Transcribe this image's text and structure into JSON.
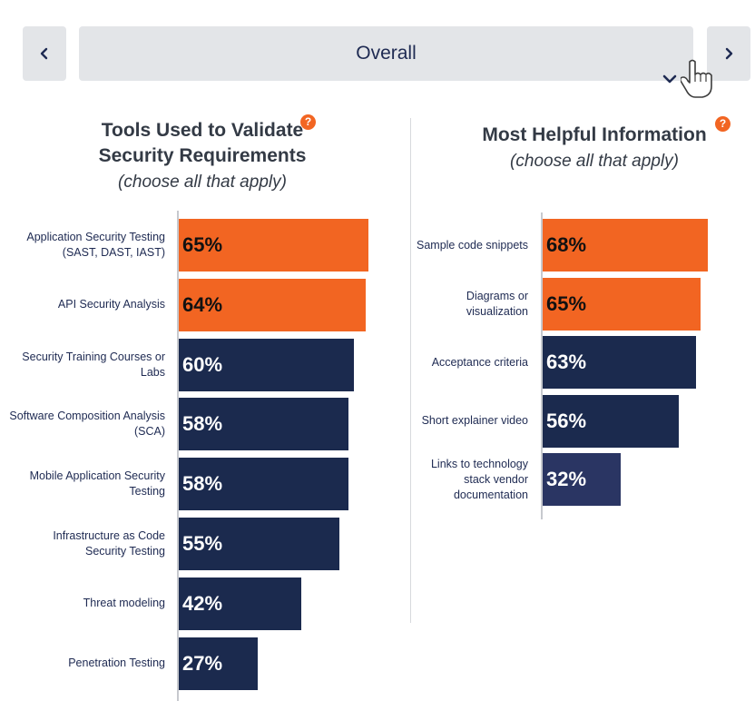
{
  "nav": {
    "prev_icon": "chevron-left-icon",
    "next_icon": "chevron-right-icon",
    "dropdown_value": "Overall",
    "dropdown_icon": "chevron-down-icon",
    "cursor_icon": "hand-pointer-icon"
  },
  "colors": {
    "highlight": "#f26522",
    "default": "#1b2a4e",
    "last_right": "#2a3563"
  },
  "chart_data": [
    {
      "type": "bar",
      "orientation": "horizontal",
      "title": "Tools Used to Validate Security Requirements",
      "title_line1": "Tools Used to Validate",
      "title_line2": "Security Requirements",
      "subtitle": "(choose all that apply)",
      "help_label": "?",
      "categories": [
        "Application Security Testing (SAST, DAST, IAST)",
        "API Security Analysis",
        "Security Training Courses or Labs",
        "Software Composition Analysis (SCA)",
        "Mobile Application Security Testing",
        "Infrastructure as Code Security Testing",
        "Threat modeling",
        "Penetration Testing"
      ],
      "values": [
        65,
        64,
        60,
        58,
        58,
        55,
        42,
        27
      ],
      "value_labels": [
        "65%",
        "64%",
        "60%",
        "58%",
        "58%",
        "55%",
        "42%",
        "27%"
      ],
      "highlighted": [
        true,
        true,
        false,
        false,
        false,
        false,
        false,
        false
      ],
      "unit": "%"
    },
    {
      "type": "bar",
      "orientation": "horizontal",
      "title": "Most Helpful Information",
      "subtitle": "(choose all that apply)",
      "help_label": "?",
      "categories": [
        "Sample code snippets",
        "Diagrams or visualization",
        "Acceptance criteria",
        "Short explainer video",
        "Links to technology stack vendor documentation"
      ],
      "values": [
        68,
        65,
        63,
        56,
        32
      ],
      "value_labels": [
        "68%",
        "65%",
        "63%",
        "56%",
        "32%"
      ],
      "highlighted": [
        true,
        true,
        false,
        false,
        false
      ],
      "unit": "%"
    }
  ]
}
